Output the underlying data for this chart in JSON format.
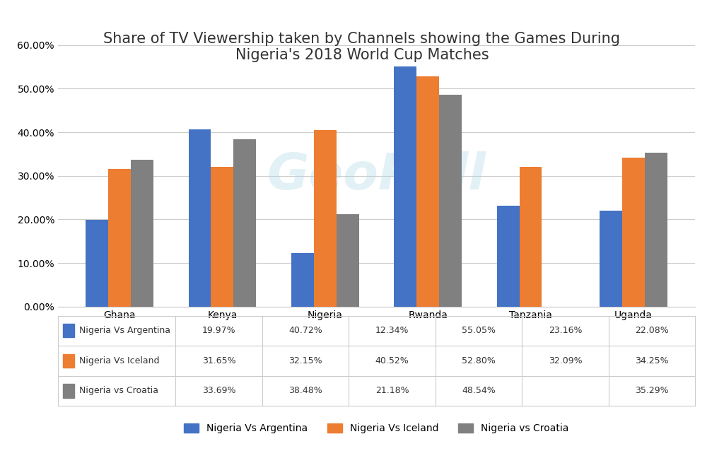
{
  "title": "Share of TV Viewership taken by Channels showing the Games During\nNigeria's 2018 World Cup Matches",
  "categories": [
    "Ghana",
    "Kenya",
    "Nigeria",
    "Rwanda",
    "Tanzania",
    "Uganda"
  ],
  "series": {
    "Nigeria Vs Argentina": [
      19.97,
      40.72,
      12.34,
      55.05,
      23.16,
      22.08
    ],
    "Nigeria Vs Iceland": [
      31.65,
      32.15,
      40.52,
      52.8,
      32.09,
      34.25
    ],
    "Nigeria vs Croatia": [
      33.69,
      38.48,
      21.18,
      48.54,
      null,
      35.29
    ]
  },
  "colors": {
    "Nigeria Vs Argentina": "#4472C4",
    "Nigeria Vs Iceland": "#ED7D31",
    "Nigeria vs Croatia": "#808080"
  },
  "ylim": [
    0,
    0.6
  ],
  "yticks": [
    0.0,
    0.1,
    0.2,
    0.3,
    0.4,
    0.5,
    0.6
  ],
  "ytick_labels": [
    "0.00%",
    "10.00%",
    "20.00%",
    "30.00%",
    "40.00%",
    "50.00%",
    "60.00%"
  ],
  "table_data": {
    "Nigeria Vs Argentina": [
      "19.97%",
      "40.72%",
      "12.34%",
      "55.05%",
      "23.16%",
      "22.08%"
    ],
    "Nigeria Vs Iceland": [
      "31.65%",
      "32.15%",
      "40.52%",
      "52.80%",
      "32.09%",
      "34.25%"
    ],
    "Nigeria vs Croatia": [
      "33.69%",
      "38.48%",
      "21.18%",
      "48.54%",
      "",
      "35.29%"
    ]
  },
  "watermark": "GeoPoll",
  "background_color": "#ffffff",
  "title_fontsize": 15,
  "tick_fontsize": 10,
  "legend_fontsize": 10,
  "bar_width": 0.22
}
